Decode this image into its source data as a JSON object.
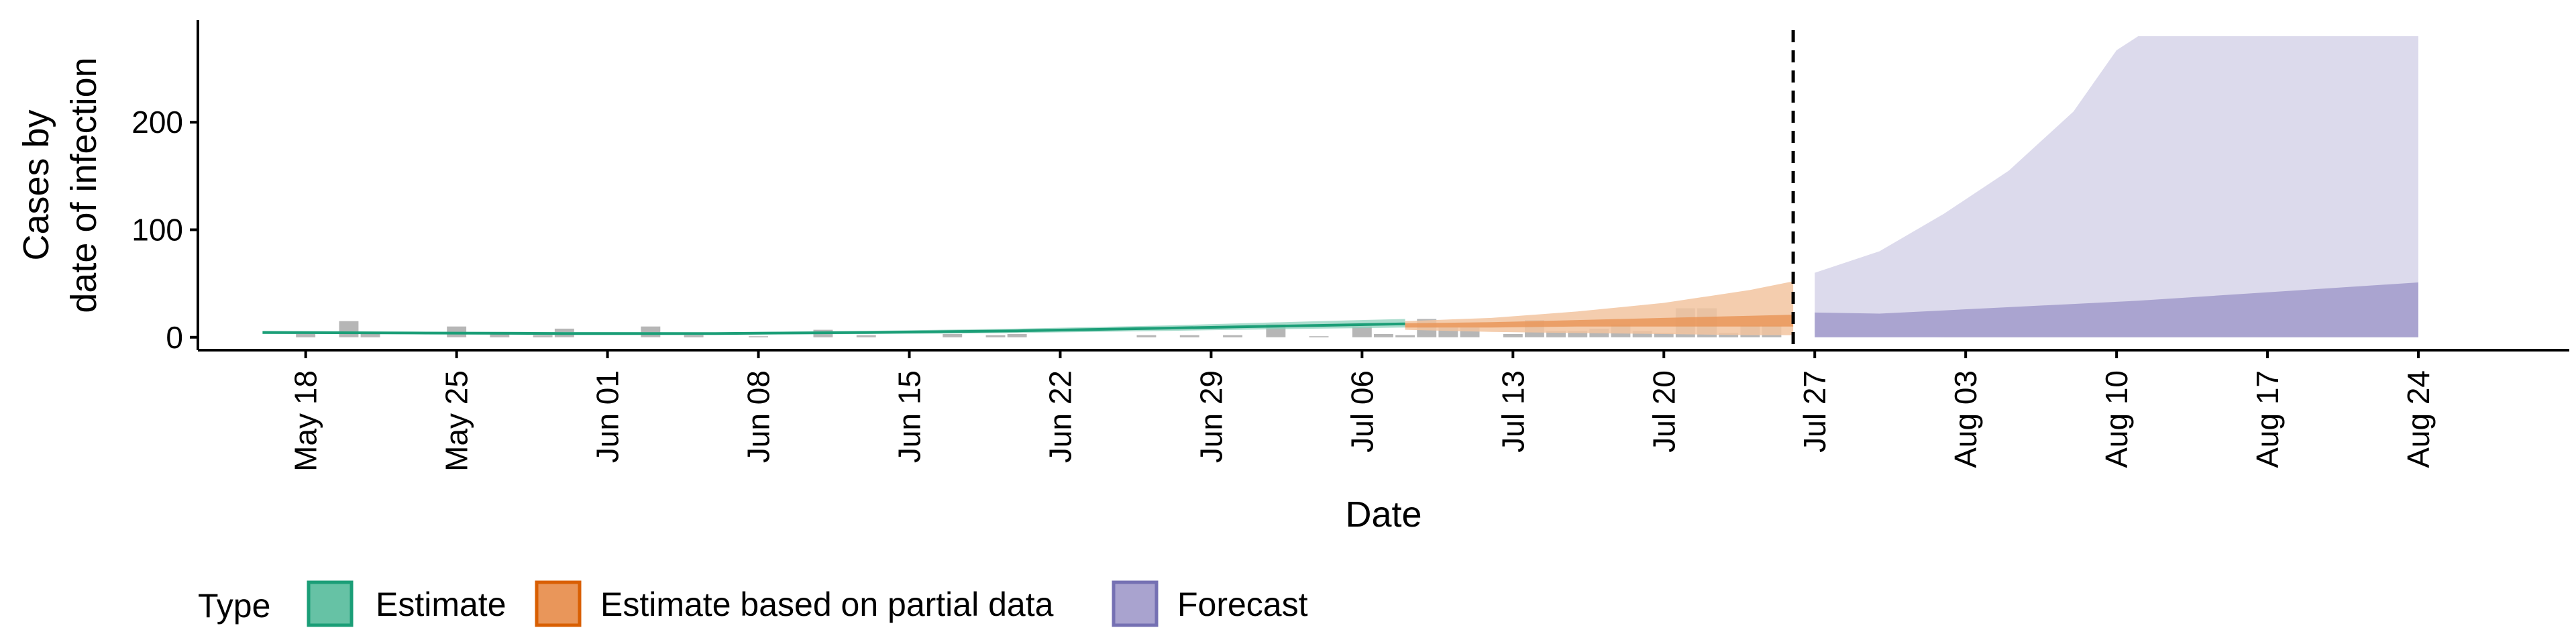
{
  "chart_data": {
    "type": "area",
    "title": "",
    "xlabel": "Date",
    "ylabel_lines": [
      "Cases by",
      "date of infection"
    ],
    "xlim": [
      "2020-05-13",
      "2020-08-31"
    ],
    "ylim": [
      -12,
      295
    ],
    "x_ticks": [
      {
        "date": "2020-05-18",
        "label": "May 18"
      },
      {
        "date": "2020-05-25",
        "label": "May 25"
      },
      {
        "date": "2020-06-01",
        "label": "Jun 01"
      },
      {
        "date": "2020-06-08",
        "label": "Jun 08"
      },
      {
        "date": "2020-06-15",
        "label": "Jun 15"
      },
      {
        "date": "2020-06-22",
        "label": "Jun 22"
      },
      {
        "date": "2020-06-29",
        "label": "Jun 29"
      },
      {
        "date": "2020-07-06",
        "label": "Jul 06"
      },
      {
        "date": "2020-07-13",
        "label": "Jul 13"
      },
      {
        "date": "2020-07-20",
        "label": "Jul 20"
      },
      {
        "date": "2020-07-27",
        "label": "Jul 27"
      },
      {
        "date": "2020-08-03",
        "label": "Aug 03"
      },
      {
        "date": "2020-08-10",
        "label": "Aug 10"
      },
      {
        "date": "2020-08-17",
        "label": "Aug 17"
      },
      {
        "date": "2020-08-24",
        "label": "Aug 24"
      }
    ],
    "y_ticks": [
      0,
      100,
      200
    ],
    "forecast_date": "2020-07-26",
    "legend": {
      "title": "Type",
      "position": "bottom",
      "items": [
        {
          "label": "Estimate",
          "fill": "#66c2a5",
          "stroke": "#1b9e77"
        },
        {
          "label": "Estimate based on partial data",
          "fill": "#e9965a",
          "stroke": "#d95f02"
        },
        {
          "label": "Forecast",
          "fill": "#a9a3cf",
          "stroke": "#7570b3"
        }
      ]
    },
    "colors": {
      "observed_bars": "#9e9e9e",
      "estimate_band": "#8fd2bd",
      "estimate_line": "#1b9e77",
      "partial_outer": "#f2c4a0",
      "partial_inner": "#e9965a",
      "forecast_outer": "#dcdaec",
      "forecast_inner": "#aaa4d0",
      "vline": "#000000"
    },
    "observed_cases": [
      {
        "date": "2020-05-18",
        "value": 4
      },
      {
        "date": "2020-05-20",
        "value": 15
      },
      {
        "date": "2020-05-21",
        "value": 3
      },
      {
        "date": "2020-05-25",
        "value": 10
      },
      {
        "date": "2020-05-27",
        "value": 4
      },
      {
        "date": "2020-05-29",
        "value": 2
      },
      {
        "date": "2020-05-30",
        "value": 8
      },
      {
        "date": "2020-06-03",
        "value": 10
      },
      {
        "date": "2020-06-05",
        "value": 2
      },
      {
        "date": "2020-06-08",
        "value": 1
      },
      {
        "date": "2020-06-11",
        "value": 7
      },
      {
        "date": "2020-06-13",
        "value": 2
      },
      {
        "date": "2020-06-17",
        "value": 3
      },
      {
        "date": "2020-06-19",
        "value": 2
      },
      {
        "date": "2020-06-20",
        "value": 3
      },
      {
        "date": "2020-06-26",
        "value": 2
      },
      {
        "date": "2020-06-28",
        "value": 2
      },
      {
        "date": "2020-06-30",
        "value": 2
      },
      {
        "date": "2020-07-02",
        "value": 12
      },
      {
        "date": "2020-07-04",
        "value": 1
      },
      {
        "date": "2020-07-06",
        "value": 10
      },
      {
        "date": "2020-07-07",
        "value": 3
      },
      {
        "date": "2020-07-08",
        "value": 2
      },
      {
        "date": "2020-07-09",
        "value": 17
      },
      {
        "date": "2020-07-10",
        "value": 9
      },
      {
        "date": "2020-07-11",
        "value": 9
      },
      {
        "date": "2020-07-13",
        "value": 3
      },
      {
        "date": "2020-07-14",
        "value": 16
      },
      {
        "date": "2020-07-15",
        "value": 6
      },
      {
        "date": "2020-07-16",
        "value": 6
      },
      {
        "date": "2020-07-17",
        "value": 8
      },
      {
        "date": "2020-07-18",
        "value": 12
      },
      {
        "date": "2020-07-19",
        "value": 6
      },
      {
        "date": "2020-07-20",
        "value": 4
      },
      {
        "date": "2020-07-21",
        "value": 27
      },
      {
        "date": "2020-07-22",
        "value": 27
      },
      {
        "date": "2020-07-23",
        "value": 4
      },
      {
        "date": "2020-07-24",
        "value": 11
      },
      {
        "date": "2020-07-25",
        "value": 11
      }
    ],
    "series": [
      {
        "type_key": "Estimate",
        "dates": [
          "2020-05-16",
          "2020-05-23",
          "2020-05-30",
          "2020-06-06",
          "2020-06-13",
          "2020-06-20",
          "2020-06-27",
          "2020-07-04",
          "2020-07-08"
        ],
        "outer_lower": [
          3,
          3,
          3,
          2.5,
          3,
          4,
          6,
          8,
          9
        ],
        "outer_upper": [
          6,
          5,
          5,
          4.5,
          6,
          8,
          11,
          15,
          17
        ],
        "median": [
          4.5,
          4,
          3.5,
          3.5,
          4.5,
          6,
          8.5,
          11,
          12.5
        ]
      },
      {
        "type_key": "Estimate based on partial data",
        "dates": [
          "2020-07-08",
          "2020-07-12",
          "2020-07-16",
          "2020-07-20",
          "2020-07-24",
          "2020-07-26"
        ],
        "outer_lower": [
          7,
          5,
          4,
          3,
          2,
          2
        ],
        "outer_upper": [
          15,
          18,
          24,
          32,
          44,
          52
        ],
        "inner_lower": [
          9,
          9,
          10,
          10,
          10,
          10
        ],
        "inner_upper": [
          13,
          14,
          16,
          18,
          20,
          21
        ]
      },
      {
        "type_key": "Forecast",
        "dates": [
          "2020-07-27",
          "2020-07-30",
          "2020-08-02",
          "2020-08-05",
          "2020-08-08",
          "2020-08-10",
          "2020-08-11",
          "2020-08-24"
        ],
        "outer_lower": [
          4,
          1,
          0,
          0,
          0,
          0,
          0,
          0
        ],
        "outer_upper": [
          60,
          80,
          115,
          155,
          210,
          267,
          280,
          280
        ],
        "inner_lower": [
          0,
          0,
          0,
          0,
          0,
          0,
          0,
          0
        ],
        "inner_upper": [
          23,
          22,
          25,
          28,
          31,
          33,
          34,
          51
        ]
      }
    ]
  }
}
